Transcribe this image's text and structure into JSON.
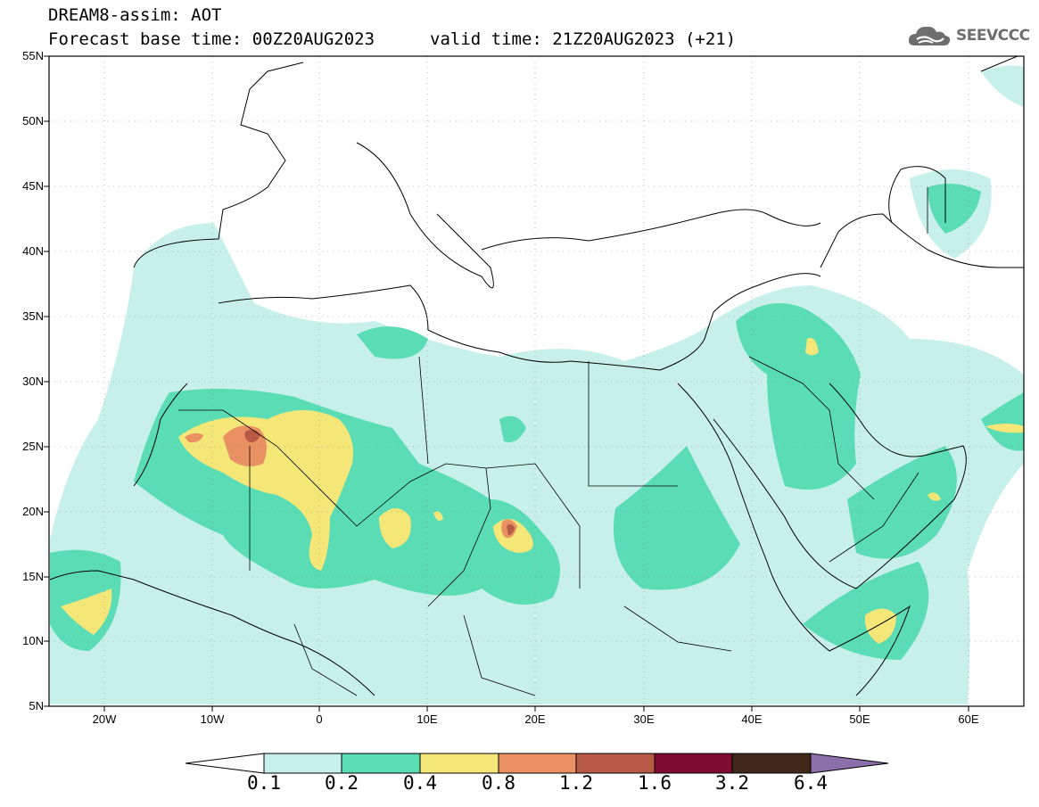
{
  "header": {
    "title": "DREAM8-assim: AOT",
    "base_time": "Forecast base time: 00Z20AUG2023",
    "valid_time": "valid time: 21Z20AUG2023 (+21)"
  },
  "logo": {
    "text": "SEEVCCC",
    "icon": "cloud-logo-icon"
  },
  "map": {
    "lat_labels": [
      "55N",
      "50N",
      "45N",
      "40N",
      "35N",
      "30N",
      "25N",
      "20N",
      "15N",
      "10N",
      "5N"
    ],
    "lon_labels": [
      "20W",
      "10W",
      "0",
      "10E",
      "20E",
      "30E",
      "40E",
      "50E",
      "60E"
    ],
    "extent": {
      "lon": [
        -25,
        65
      ],
      "lat": [
        5,
        55
      ]
    },
    "grid": "dotted"
  },
  "colorbar": {
    "labels": [
      "0.1",
      "0.2",
      "0.4",
      "0.8",
      "1.2",
      "1.6",
      "3.2",
      "6.4"
    ],
    "colors": [
      "#c8f0ea",
      "#5adcb4",
      "#f5e678",
      "#ea9164",
      "#b75a46",
      "#7f0a32",
      "#41281a",
      "#8c6eaa"
    ]
  }
}
